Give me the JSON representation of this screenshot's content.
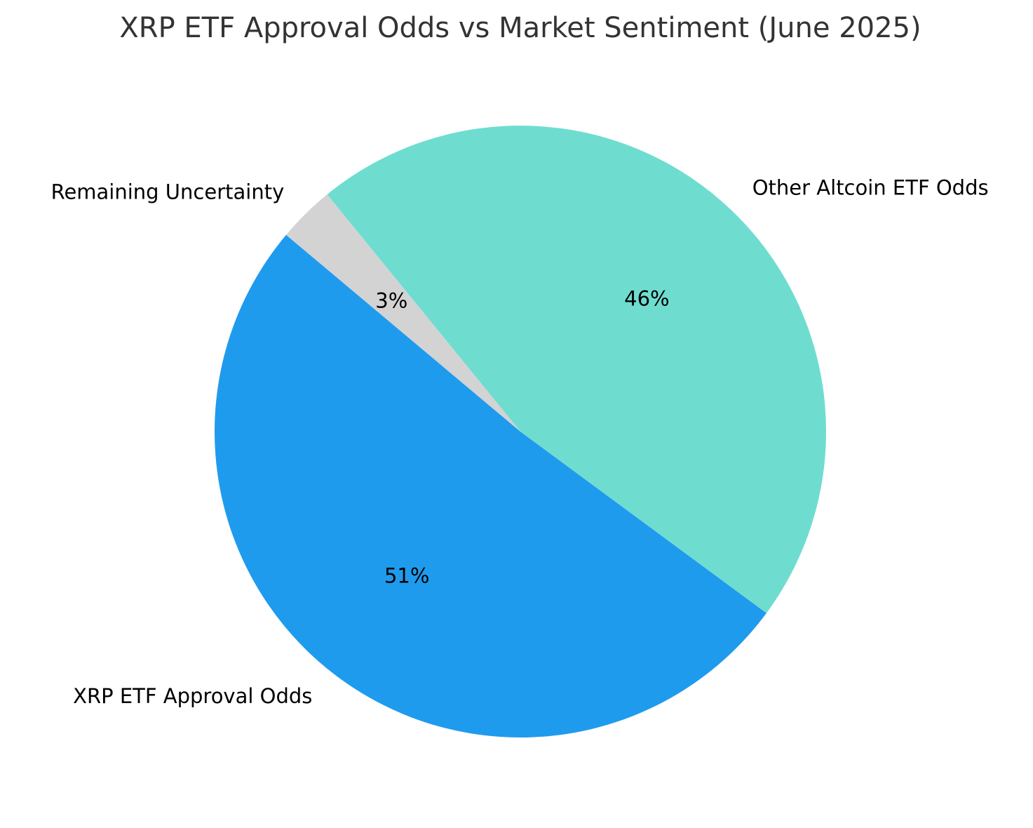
{
  "chart_data": {
    "type": "pie",
    "title": "XRP ETF Approval Odds vs Market Sentiment (June 2025)",
    "start_angle_deg": 140,
    "counterclock": true,
    "slices": [
      {
        "label": "XRP ETF Approval Odds",
        "value": 51,
        "pct_label": "51%",
        "color": "#1f9bee"
      },
      {
        "label": "Other Altcoin ETF Odds",
        "value": 46,
        "pct_label": "46%",
        "color": "#6eddd0"
      },
      {
        "label": "Remaining Uncertainty",
        "value": 3,
        "pct_label": "3%",
        "color": "#d3d3d3"
      }
    ]
  }
}
